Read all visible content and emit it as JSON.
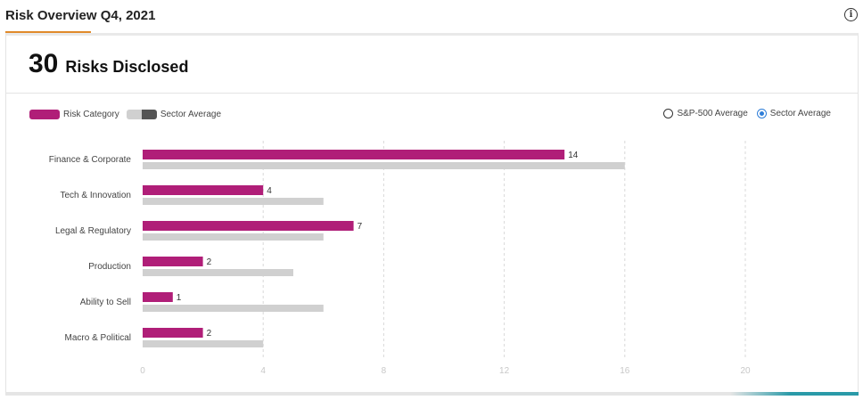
{
  "header": {
    "title": "Risk Overview Q4, 2021",
    "info_icon": "info-icon"
  },
  "summary": {
    "count": "30",
    "label": "Risks Disclosed"
  },
  "legend": {
    "category_label": "Risk Category",
    "average_label": "Sector Average"
  },
  "radio": {
    "options": [
      {
        "label": "S&P-500 Average",
        "checked": false
      },
      {
        "label": "Sector Average",
        "checked": true
      }
    ]
  },
  "colors": {
    "category": "#b01e78",
    "average": "#d0d0d0",
    "accent": "#e08a2a"
  },
  "chart_data": {
    "type": "bar",
    "orientation": "horizontal",
    "categories": [
      "Finance & Corporate",
      "Tech & Innovation",
      "Legal & Regulatory",
      "Production",
      "Ability to Sell",
      "Macro & Political"
    ],
    "series": [
      {
        "name": "Risk Category",
        "values": [
          14,
          4,
          7,
          2,
          1,
          2
        ]
      },
      {
        "name": "Sector Average",
        "values": [
          16,
          6,
          6,
          5,
          6,
          4
        ]
      }
    ],
    "xlim": [
      0,
      20
    ],
    "xticks": [
      "0",
      "4",
      "8",
      "12",
      "16",
      "20"
    ],
    "grid": true,
    "legend_position": "top-left"
  }
}
